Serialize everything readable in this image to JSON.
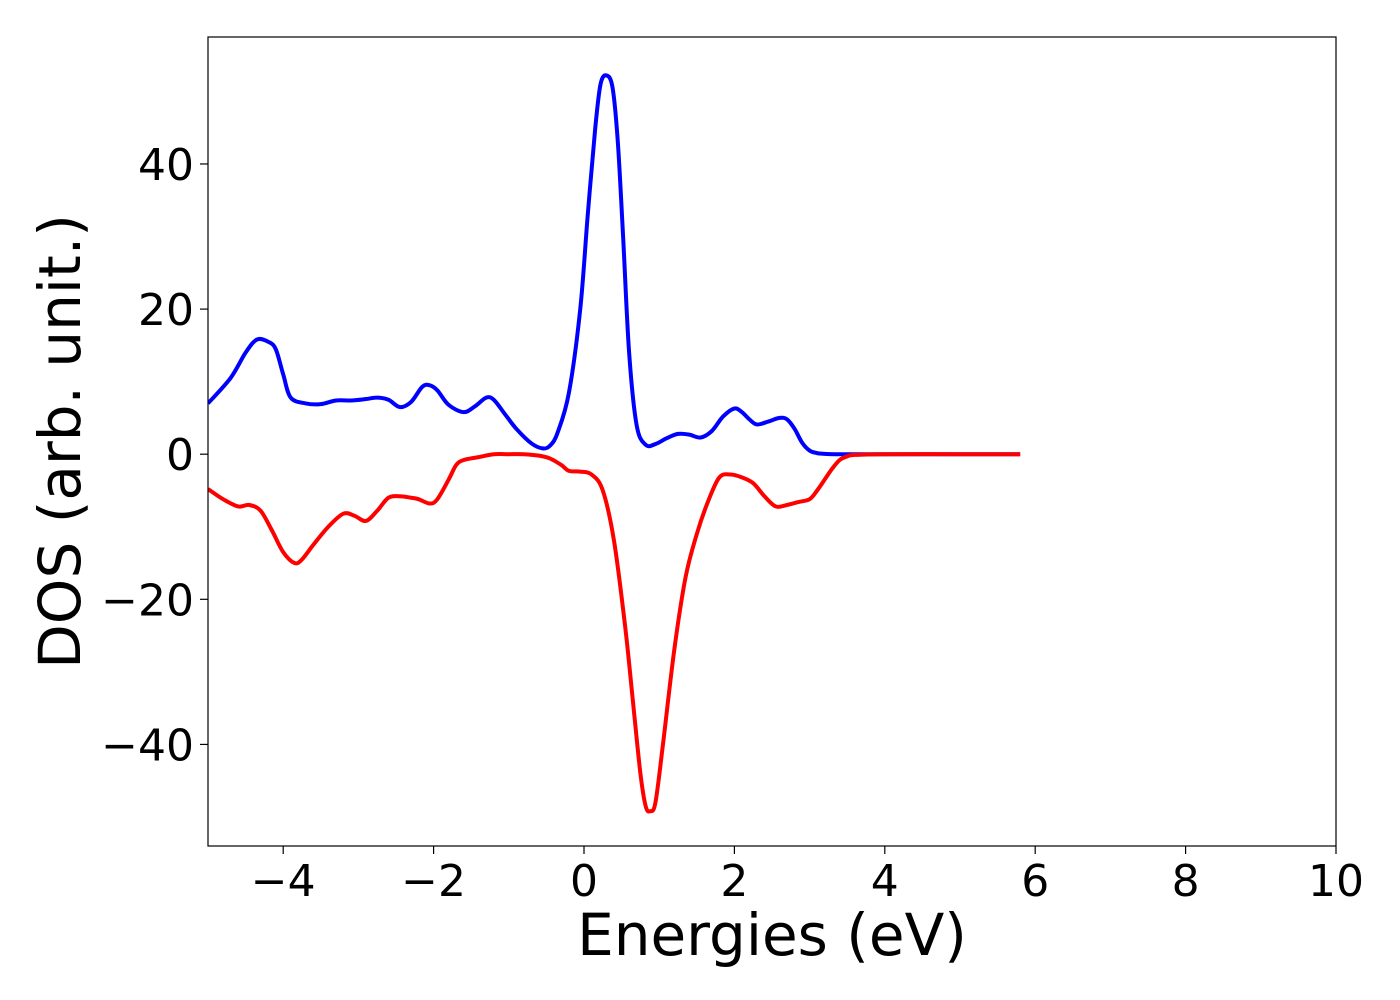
{
  "chart_data": {
    "type": "line",
    "title": "",
    "xlabel": "Energies (eV)",
    "ylabel": "DOS (arb. unit.)",
    "xlim": [
      -5,
      10
    ],
    "ylim": [
      -54,
      57.5
    ],
    "xticks": [
      -4,
      -2,
      0,
      2,
      4,
      6,
      8,
      10
    ],
    "xtick_labels": [
      "−4",
      "−2",
      "0",
      "2",
      "4",
      "6",
      "8",
      "10"
    ],
    "yticks": [
      -40,
      -20,
      0,
      20,
      40
    ],
    "ytick_labels": [
      "−40",
      "−20",
      "0",
      "20",
      "40"
    ],
    "grid": false,
    "legend": "none",
    "series": [
      {
        "color": "#0000ff",
        "x": [
          -5.0,
          -4.7,
          -4.5,
          -4.35,
          -4.2,
          -4.1,
          -4.0,
          -3.9,
          -3.7,
          -3.5,
          -3.3,
          -3.1,
          -2.9,
          -2.75,
          -2.6,
          -2.45,
          -2.3,
          -2.15,
          -2.05,
          -1.95,
          -1.8,
          -1.6,
          -1.45,
          -1.3,
          -1.2,
          -1.05,
          -0.9,
          -0.7,
          -0.55,
          -0.45,
          -0.35,
          -0.2,
          -0.05,
          0.05,
          0.15,
          0.22,
          0.3,
          0.38,
          0.45,
          0.52,
          0.6,
          0.7,
          0.82,
          0.95,
          1.1,
          1.25,
          1.4,
          1.55,
          1.7,
          1.85,
          2.0,
          2.1,
          2.2,
          2.3,
          2.45,
          2.6,
          2.7,
          2.8,
          2.9,
          3.0,
          3.1,
          3.2,
          3.35,
          3.5,
          4.0,
          5.0,
          5.8
        ],
        "y": [
          7.0,
          10.5,
          14.0,
          15.8,
          15.5,
          14.5,
          11.0,
          7.8,
          7.0,
          6.9,
          7.4,
          7.4,
          7.6,
          7.8,
          7.5,
          6.5,
          7.2,
          9.3,
          9.5,
          8.8,
          6.8,
          5.8,
          6.6,
          7.8,
          7.5,
          5.5,
          3.5,
          1.5,
          0.8,
          1.2,
          3.0,
          8.5,
          20.0,
          33.0,
          45.0,
          51.0,
          52.2,
          50.5,
          43.0,
          30.0,
          14.0,
          4.0,
          1.3,
          1.4,
          2.2,
          2.8,
          2.7,
          2.3,
          3.2,
          5.2,
          6.3,
          5.8,
          4.8,
          4.1,
          4.5,
          5.0,
          4.8,
          3.5,
          1.6,
          0.5,
          0.15,
          0.05,
          0.0,
          0.0,
          0.0,
          0.0,
          0.0
        ]
      },
      {
        "color": "#ff0000",
        "x": [
          -5.0,
          -4.8,
          -4.6,
          -4.45,
          -4.3,
          -4.15,
          -4.0,
          -3.85,
          -3.75,
          -3.6,
          -3.4,
          -3.2,
          -3.05,
          -2.9,
          -2.75,
          -2.6,
          -2.45,
          -2.3,
          -2.2,
          -2.05,
          -1.95,
          -1.8,
          -1.7,
          -1.6,
          -1.4,
          -1.2,
          -1.0,
          -0.8,
          -0.6,
          -0.45,
          -0.3,
          -0.2,
          -0.05,
          0.1,
          0.25,
          0.4,
          0.55,
          0.65,
          0.75,
          0.82,
          0.88,
          0.95,
          1.05,
          1.2,
          1.35,
          1.5,
          1.65,
          1.8,
          1.95,
          2.1,
          2.25,
          2.4,
          2.55,
          2.7,
          2.85,
          3.0,
          3.1,
          3.2,
          3.3,
          3.4,
          3.5,
          3.6,
          4.0,
          5.0,
          5.8
        ],
        "y": [
          -4.8,
          -6.2,
          -7.2,
          -7.0,
          -7.8,
          -10.5,
          -13.5,
          -15.0,
          -14.5,
          -12.5,
          -10.0,
          -8.2,
          -8.5,
          -9.2,
          -7.8,
          -6.0,
          -5.8,
          -6.0,
          -6.2,
          -6.8,
          -6.2,
          -3.5,
          -1.5,
          -0.8,
          -0.4,
          0.0,
          0.0,
          0.0,
          -0.2,
          -0.6,
          -1.5,
          -2.3,
          -2.4,
          -2.8,
          -5.0,
          -12.0,
          -24.0,
          -34.0,
          -44.0,
          -48.5,
          -49.2,
          -48.0,
          -40.0,
          -27.0,
          -17.0,
          -11.0,
          -6.5,
          -3.2,
          -2.8,
          -3.2,
          -4.0,
          -5.8,
          -7.2,
          -7.0,
          -6.6,
          -6.2,
          -5.0,
          -3.5,
          -2.0,
          -0.8,
          -0.3,
          -0.1,
          0.0,
          0.0,
          0.0
        ]
      }
    ]
  }
}
